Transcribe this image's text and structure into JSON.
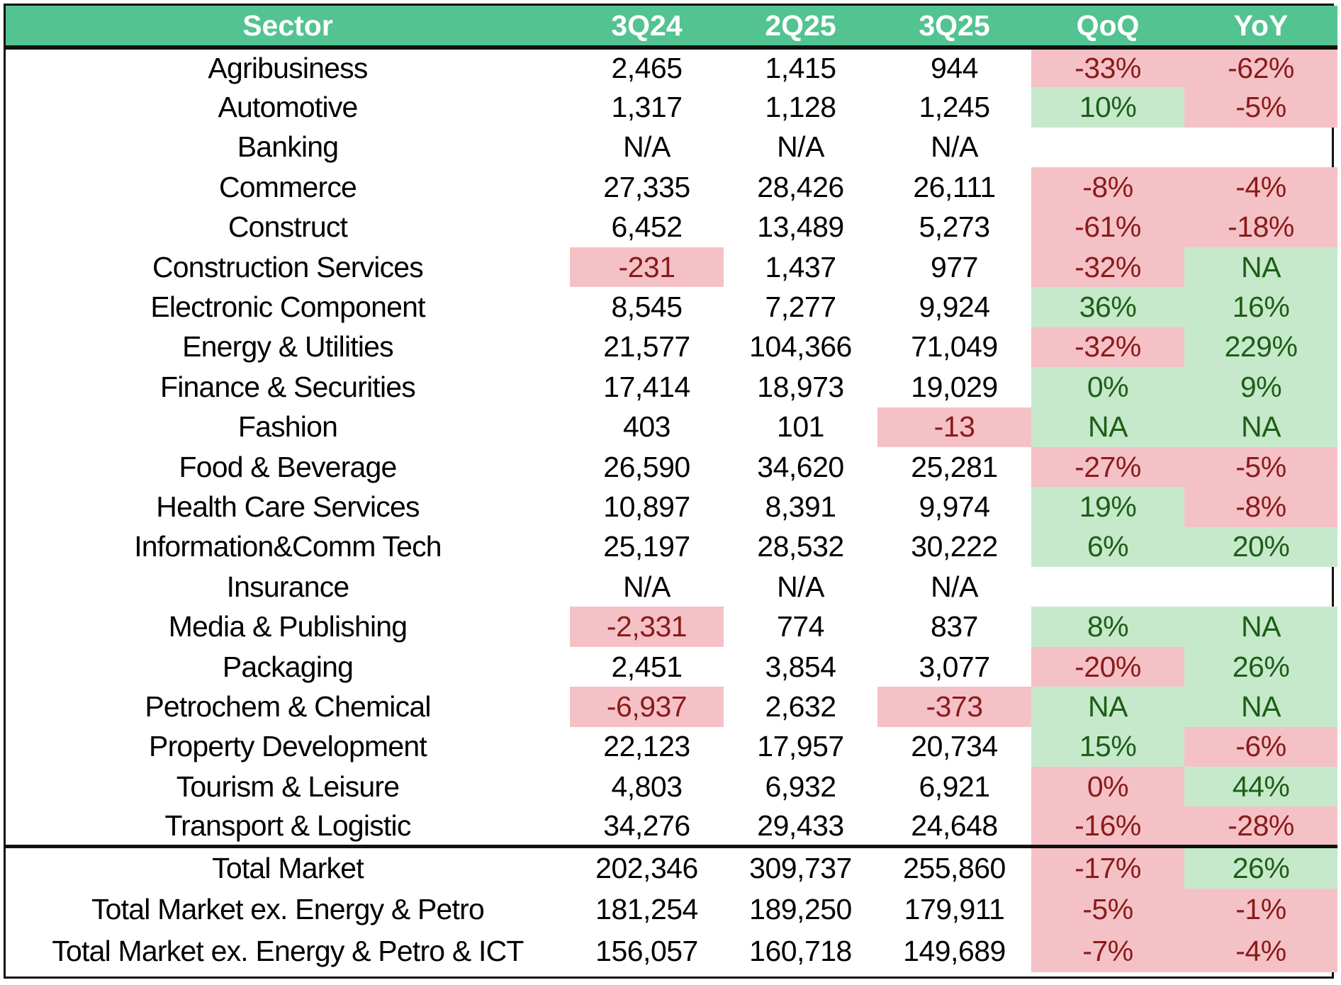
{
  "colors": {
    "header_bg": "#52C391",
    "header_text": "#FFFFFF",
    "negative_bg": "#F4C2C6",
    "negative_text": "#8B1A1A",
    "positive_bg": "#C6E9CB",
    "positive_text": "#1E5E17",
    "border": "#111111"
  },
  "headers": [
    "Sector",
    "3Q24",
    "2Q25",
    "3Q25",
    "QoQ",
    "YoY"
  ],
  "rows": [
    {
      "sector": "Agribusiness",
      "q3_24": "2,465",
      "q2_25": "1,415",
      "q3_25": "944",
      "qoq": "-33%",
      "yoy": "-62%",
      "styles": {
        "q3_24": "",
        "q2_25": "",
        "q3_25": "",
        "qoq": "neg",
        "yoy": "neg"
      }
    },
    {
      "sector": "Automotive",
      "q3_24": "1,317",
      "q2_25": "1,128",
      "q3_25": "1,245",
      "qoq": "10%",
      "yoy": "-5%",
      "styles": {
        "q3_24": "",
        "q2_25": "",
        "q3_25": "",
        "qoq": "pos",
        "yoy": "neg"
      }
    },
    {
      "sector": "Banking",
      "q3_24": "N/A",
      "q2_25": "N/A",
      "q3_25": "N/A",
      "qoq": "",
      "yoy": "",
      "styles": {
        "q3_24": "",
        "q2_25": "",
        "q3_25": "",
        "qoq": "",
        "yoy": ""
      }
    },
    {
      "sector": "Commerce",
      "q3_24": "27,335",
      "q2_25": "28,426",
      "q3_25": "26,111",
      "qoq": "-8%",
      "yoy": "-4%",
      "styles": {
        "q3_24": "",
        "q2_25": "",
        "q3_25": "",
        "qoq": "neg",
        "yoy": "neg"
      }
    },
    {
      "sector": "Construct",
      "q3_24": "6,452",
      "q2_25": "13,489",
      "q3_25": "5,273",
      "qoq": "-61%",
      "yoy": "-18%",
      "styles": {
        "q3_24": "",
        "q2_25": "",
        "q3_25": "",
        "qoq": "neg",
        "yoy": "neg"
      }
    },
    {
      "sector": "Construction Services",
      "q3_24": "-231",
      "q2_25": "1,437",
      "q3_25": "977",
      "qoq": "-32%",
      "yoy": "NA",
      "styles": {
        "q3_24": "neg",
        "q2_25": "",
        "q3_25": "",
        "qoq": "neg",
        "yoy": "pos"
      }
    },
    {
      "sector": "Electronic Component",
      "q3_24": "8,545",
      "q2_25": "7,277",
      "q3_25": "9,924",
      "qoq": "36%",
      "yoy": "16%",
      "styles": {
        "q3_24": "",
        "q2_25": "",
        "q3_25": "",
        "qoq": "pos",
        "yoy": "pos"
      }
    },
    {
      "sector": "Energy & Utilities",
      "q3_24": "21,577",
      "q2_25": "104,366",
      "q3_25": "71,049",
      "qoq": "-32%",
      "yoy": "229%",
      "styles": {
        "q3_24": "",
        "q2_25": "",
        "q3_25": "",
        "qoq": "neg",
        "yoy": "pos"
      }
    },
    {
      "sector": "Finance & Securities",
      "q3_24": "17,414",
      "q2_25": "18,973",
      "q3_25": "19,029",
      "qoq": "0%",
      "yoy": "9%",
      "styles": {
        "q3_24": "",
        "q2_25": "",
        "q3_25": "",
        "qoq": "pos",
        "yoy": "pos"
      }
    },
    {
      "sector": "Fashion",
      "q3_24": "403",
      "q2_25": "101",
      "q3_25": "-13",
      "qoq": "NA",
      "yoy": "NA",
      "styles": {
        "q3_24": "",
        "q2_25": "",
        "q3_25": "neg",
        "qoq": "pos",
        "yoy": "pos"
      }
    },
    {
      "sector": "Food & Beverage",
      "q3_24": "26,590",
      "q2_25": "34,620",
      "q3_25": "25,281",
      "qoq": "-27%",
      "yoy": "-5%",
      "styles": {
        "q3_24": "",
        "q2_25": "",
        "q3_25": "",
        "qoq": "neg",
        "yoy": "neg"
      }
    },
    {
      "sector": "Health Care Services",
      "q3_24": "10,897",
      "q2_25": "8,391",
      "q3_25": "9,974",
      "qoq": "19%",
      "yoy": "-8%",
      "styles": {
        "q3_24": "",
        "q2_25": "",
        "q3_25": "",
        "qoq": "pos",
        "yoy": "neg"
      }
    },
    {
      "sector": "Information&Comm Tech",
      "q3_24": "25,197",
      "q2_25": "28,532",
      "q3_25": "30,222",
      "qoq": "6%",
      "yoy": "20%",
      "styles": {
        "q3_24": "",
        "q2_25": "",
        "q3_25": "",
        "qoq": "pos",
        "yoy": "pos"
      }
    },
    {
      "sector": "Insurance",
      "q3_24": "N/A",
      "q2_25": "N/A",
      "q3_25": "N/A",
      "qoq": "",
      "yoy": "",
      "styles": {
        "q3_24": "",
        "q2_25": "",
        "q3_25": "",
        "qoq": "",
        "yoy": ""
      }
    },
    {
      "sector": "Media & Publishing",
      "q3_24": "-2,331",
      "q2_25": "774",
      "q3_25": "837",
      "qoq": "8%",
      "yoy": "NA",
      "styles": {
        "q3_24": "neg",
        "q2_25": "",
        "q3_25": "",
        "qoq": "pos",
        "yoy": "pos"
      }
    },
    {
      "sector": "Packaging",
      "q3_24": "2,451",
      "q2_25": "3,854",
      "q3_25": "3,077",
      "qoq": "-20%",
      "yoy": "26%",
      "styles": {
        "q3_24": "",
        "q2_25": "",
        "q3_25": "",
        "qoq": "neg",
        "yoy": "pos"
      }
    },
    {
      "sector": "Petrochem & Chemical",
      "q3_24": "-6,937",
      "q2_25": "2,632",
      "q3_25": "-373",
      "qoq": "NA",
      "yoy": "NA",
      "styles": {
        "q3_24": "neg",
        "q2_25": "",
        "q3_25": "neg",
        "qoq": "pos",
        "yoy": "pos"
      }
    },
    {
      "sector": "Property Development",
      "q3_24": "22,123",
      "q2_25": "17,957",
      "q3_25": "20,734",
      "qoq": "15%",
      "yoy": "-6%",
      "styles": {
        "q3_24": "",
        "q2_25": "",
        "q3_25": "",
        "qoq": "pos",
        "yoy": "neg"
      }
    },
    {
      "sector": "Tourism & Leisure",
      "q3_24": "4,803",
      "q2_25": "6,932",
      "q3_25": "6,921",
      "qoq": "0%",
      "yoy": "44%",
      "styles": {
        "q3_24": "",
        "q2_25": "",
        "q3_25": "",
        "qoq": "neg",
        "yoy": "pos"
      }
    },
    {
      "sector": "Transport & Logistic",
      "q3_24": "34,276",
      "q2_25": "29,433",
      "q3_25": "24,648",
      "qoq": "-16%",
      "yoy": "-28%",
      "styles": {
        "q3_24": "",
        "q2_25": "",
        "q3_25": "",
        "qoq": "neg",
        "yoy": "neg"
      }
    }
  ],
  "totals": [
    {
      "sector": "Total Market",
      "q3_24": "202,346",
      "q2_25": "309,737",
      "q3_25": "255,860",
      "qoq": "-17%",
      "yoy": "26%",
      "styles": {
        "q3_24": "",
        "q2_25": "",
        "q3_25": "",
        "qoq": "neg",
        "yoy": "pos"
      }
    },
    {
      "sector": "Total Market ex. Energy & Petro",
      "q3_24": "181,254",
      "q2_25": "189,250",
      "q3_25": "179,911",
      "qoq": "-5%",
      "yoy": "-1%",
      "styles": {
        "q3_24": "",
        "q2_25": "",
        "q3_25": "",
        "qoq": "neg",
        "yoy": "neg"
      }
    },
    {
      "sector": "Total Market ex. Energy &  Petro & ICT",
      "q3_24": "156,057",
      "q2_25": "160,718",
      "q3_25": "149,689",
      "qoq": "-7%",
      "yoy": "-4%",
      "styles": {
        "q3_24": "",
        "q2_25": "",
        "q3_25": "",
        "qoq": "neg",
        "yoy": "neg"
      }
    }
  ]
}
